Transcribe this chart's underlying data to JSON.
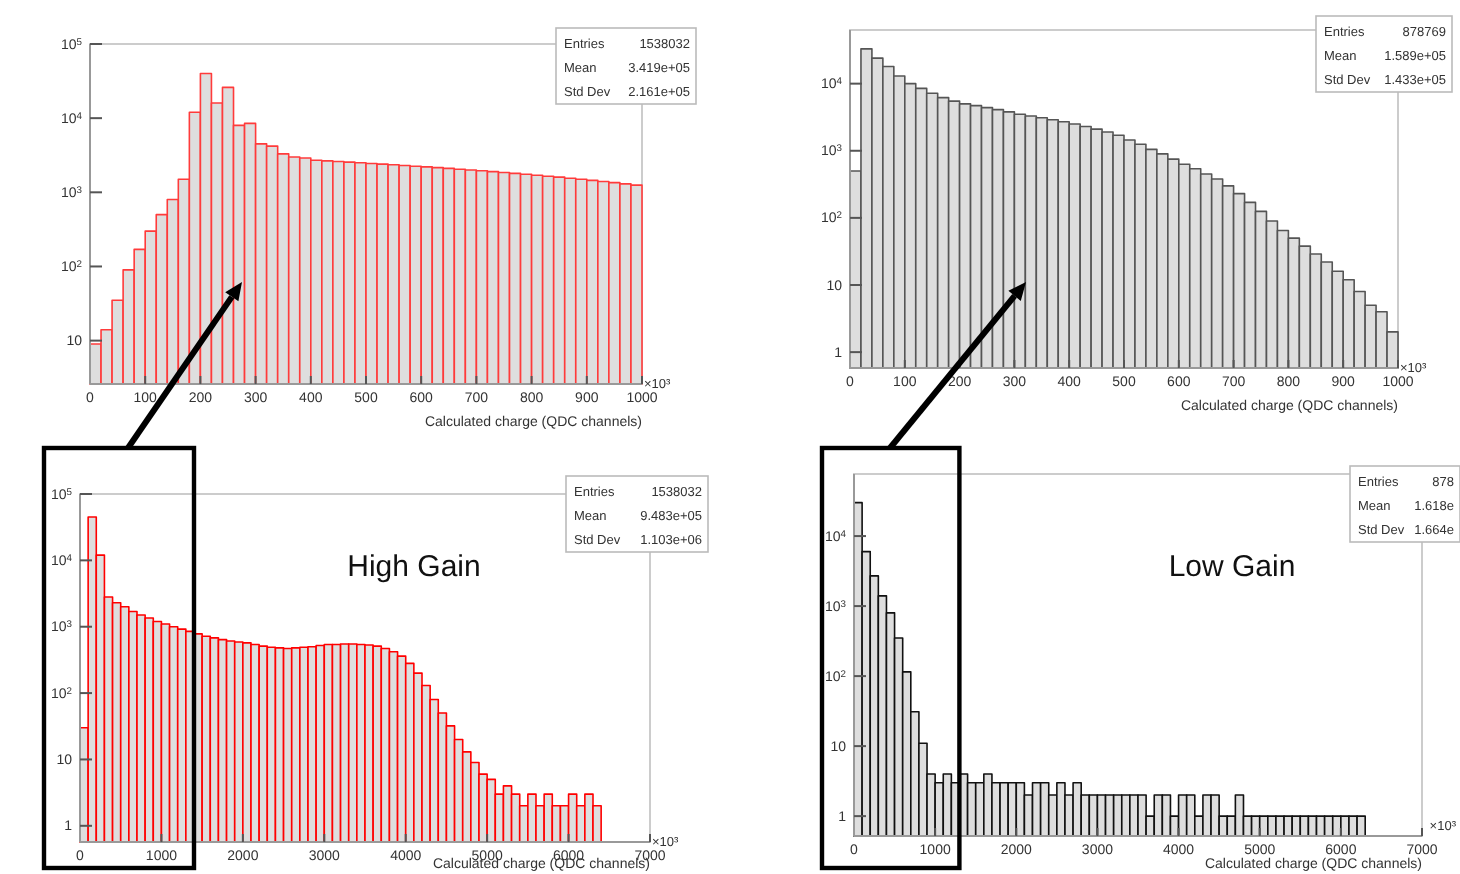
{
  "chart_data": [
    {
      "type": "histogram",
      "xlabel": "Calculated charge (QDC channels)",
      "log": "y",
      "color": "#ff3b3b",
      "xlim": [
        0,
        1000
      ],
      "xticks": [
        0,
        100,
        200,
        300,
        400,
        500,
        600,
        700,
        800,
        900,
        1000
      ],
      "ylim": [
        2.6,
        100000
      ],
      "yticks": [
        {
          "value": 10,
          "label": "10"
        },
        {
          "value": 100,
          "label": "10$^{2}$"
        },
        {
          "value": 1000,
          "label": "10$^{3}$"
        },
        {
          "value": 10000,
          "label": "10$^{4}$"
        },
        {
          "value": 100000,
          "label": "10$^{5}$"
        }
      ],
      "bins": [
        0,
        20,
        40,
        60,
        80,
        100,
        120,
        140,
        160,
        180,
        200,
        220,
        240,
        260,
        280,
        300,
        320,
        340,
        360,
        380,
        400,
        420,
        440,
        460,
        480,
        500,
        520,
        540,
        560,
        580,
        600,
        620,
        640,
        660,
        680,
        700,
        720,
        740,
        760,
        780,
        800,
        820,
        840,
        860,
        880,
        900,
        920,
        940,
        960,
        980,
        1000
      ],
      "values": [
        9,
        14,
        35,
        90,
        170,
        300,
        500,
        800,
        1500,
        12000,
        40000,
        16000,
        26000,
        8000,
        8500,
        4500,
        4200,
        3300,
        3000,
        2900,
        2700,
        2650,
        2600,
        2550,
        2500,
        2450,
        2400,
        2350,
        2300,
        2250,
        2200,
        2150,
        2100,
        2050,
        2000,
        1950,
        1900,
        1850,
        1800,
        1750,
        1700,
        1650,
        1600,
        1550,
        1500,
        1450,
        1400,
        1350,
        1300,
        1250
      ],
      "annotations": [
        "Entries",
        "1538032",
        "Mean",
        "3.419e+05",
        "Std Dev",
        "2.161e+05",
        "×10³"
      ]
    },
    {
      "type": "histogram",
      "xlabel": "Calculated charge (QDC channels)",
      "log": "y",
      "color": "#555555",
      "xlim": [
        0,
        1000
      ],
      "xticks": [
        0,
        100,
        200,
        300,
        400,
        500,
        600,
        700,
        800,
        900,
        1000
      ],
      "ylim": [
        0.58,
        63000
      ],
      "yticks": [
        {
          "value": 1,
          "label": "1"
        },
        {
          "value": 10,
          "label": "10"
        },
        {
          "value": 100,
          "label": "10$^{2}$"
        },
        {
          "value": 1000,
          "label": "10$^{3}$"
        },
        {
          "value": 10000,
          "label": "10$^{4}$"
        }
      ],
      "bins": [
        0,
        20,
        40,
        60,
        80,
        100,
        120,
        140,
        160,
        180,
        200,
        220,
        240,
        260,
        280,
        300,
        320,
        340,
        360,
        380,
        400,
        420,
        440,
        460,
        480,
        500,
        520,
        540,
        560,
        580,
        600,
        620,
        640,
        660,
        680,
        700,
        720,
        740,
        760,
        780,
        800,
        820,
        840,
        860,
        880,
        900,
        920,
        940,
        960,
        980,
        1000
      ],
      "values": [
        500,
        33000,
        24000,
        18000,
        13000,
        10000,
        8500,
        7200,
        6200,
        5500,
        5000,
        4700,
        4400,
        4100,
        3800,
        3500,
        3300,
        3100,
        2900,
        2700,
        2500,
        2300,
        2100,
        1900,
        1700,
        1450,
        1250,
        1050,
        900,
        750,
        630,
        540,
        450,
        380,
        300,
        230,
        170,
        125,
        90,
        65,
        50,
        38,
        29,
        22,
        16,
        12,
        8,
        5,
        4,
        2
      ],
      "annotations": [
        "Entries",
        "878769",
        "Mean",
        "1.589e+05",
        "Std Dev",
        "1.433e+05",
        "×10³"
      ]
    },
    {
      "type": "histogram",
      "xlabel": "Calculated charge (QDC channels)",
      "log": "y",
      "color": "#ff0000",
      "xlim": [
        0,
        7000
      ],
      "xticks": [
        0,
        1000,
        2000,
        3000,
        4000,
        5000,
        6000,
        7000
      ],
      "ylim": [
        0.57,
        100000
      ],
      "yticks": [
        {
          "value": 1,
          "label": "1"
        },
        {
          "value": 10,
          "label": "10"
        },
        {
          "value": 100,
          "label": "10$^{2}$"
        },
        {
          "value": 1000,
          "label": "10$^{3}$"
        },
        {
          "value": 10000,
          "label": "10$^{4}$"
        },
        {
          "value": 100000,
          "label": "10$^{5}$"
        }
      ],
      "bins": [
        0,
        100,
        200,
        300,
        400,
        500,
        600,
        700,
        800,
        900,
        1000,
        1100,
        1200,
        1300,
        1400,
        1500,
        1600,
        1700,
        1800,
        1900,
        2000,
        2100,
        2200,
        2300,
        2400,
        2500,
        2600,
        2700,
        2800,
        2900,
        3000,
        3100,
        3200,
        3300,
        3400,
        3500,
        3600,
        3700,
        3800,
        3900,
        4000,
        4100,
        4200,
        4300,
        4400,
        4500,
        4600,
        4700,
        4800,
        4900,
        5000,
        5100,
        5200,
        5300,
        5400,
        5500,
        5600,
        5700,
        5800,
        5900,
        6000,
        6100,
        6200,
        6300,
        6400
      ],
      "values": [
        30,
        45000,
        12000,
        2800,
        2300,
        2000,
        1700,
        1500,
        1350,
        1200,
        1100,
        1000,
        920,
        850,
        780,
        720,
        680,
        640,
        610,
        590,
        570,
        540,
        510,
        490,
        480,
        470,
        480,
        490,
        500,
        520,
        540,
        540,
        550,
        550,
        540,
        530,
        510,
        470,
        420,
        360,
        280,
        200,
        130,
        80,
        50,
        32,
        20,
        13,
        9,
        6,
        5,
        3,
        4,
        3,
        2,
        3,
        2,
        3,
        2,
        2,
        3,
        2,
        3,
        2
      ],
      "annotations": [
        "Entries",
        "1538032",
        "Mean",
        "9.483e+05",
        "Std Dev",
        "1.103e+06",
        "×10³",
        "High Gain"
      ]
    },
    {
      "type": "histogram",
      "xlabel": "Calculated charge (QDC channels)",
      "log": "y",
      "color": "#111111",
      "xlim": [
        0,
        7000
      ],
      "xticks": [
        0,
        1000,
        2000,
        3000,
        4000,
        5000,
        6000,
        7000
      ],
      "ylim": [
        0.52,
        77000
      ],
      "yticks": [
        {
          "value": 1,
          "label": "1"
        },
        {
          "value": 10,
          "label": "10"
        },
        {
          "value": 100,
          "label": "10$^{2}$"
        },
        {
          "value": 1000,
          "label": "10$^{3}$"
        },
        {
          "value": 10000,
          "label": "10$^{4}$"
        }
      ],
      "bins": [
        0,
        100,
        200,
        300,
        400,
        500,
        600,
        700,
        800,
        900,
        1000,
        1100,
        1200,
        1300,
        1400,
        1500,
        1600,
        1700,
        1800,
        1900,
        2000,
        2100,
        2200,
        2300,
        2400,
        2500,
        2600,
        2700,
        2800,
        2900,
        3000,
        3100,
        3200,
        3300,
        3400,
        3500,
        3600,
        3700,
        3800,
        3900,
        4000,
        4100,
        4200,
        4300,
        4400,
        4500,
        4600,
        4700,
        4800,
        4900,
        5000,
        5100,
        5200,
        5300,
        5400,
        5500,
        5600,
        5700,
        5800,
        5900,
        6000,
        6100,
        6200,
        6300
      ],
      "values": [
        30000,
        6000,
        2700,
        1400,
        800,
        350,
        115,
        31,
        11,
        4,
        3,
        4,
        3,
        4,
        3,
        3,
        4,
        3,
        3,
        3,
        3,
        2,
        3,
        3,
        2,
        3,
        2,
        3,
        2,
        2,
        2,
        2,
        2,
        2,
        2,
        2,
        1,
        2,
        2,
        1,
        2,
        2,
        1,
        2,
        2,
        1,
        1,
        2,
        1,
        1,
        1,
        1,
        1,
        1,
        1,
        1,
        1,
        1,
        1,
        1,
        1,
        1,
        1
      ],
      "annotations": [
        "Entries",
        "878",
        "Mean",
        "1.618e",
        "Std Dev",
        "1.664e",
        "×10³",
        "Low Gain"
      ]
    }
  ]
}
